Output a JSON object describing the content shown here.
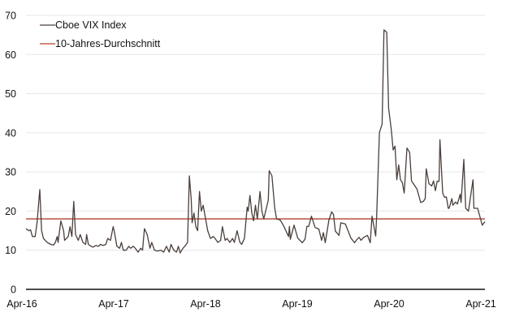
{
  "chart_data": {
    "type": "line",
    "title": "",
    "xlabel": "",
    "ylabel": "",
    "ylim": [
      0,
      70
    ],
    "yticks": [
      0,
      10,
      20,
      30,
      40,
      50,
      60,
      70
    ],
    "xlim_years_since_start": [
      0,
      5
    ],
    "xtick_labels": [
      "Apr-16",
      "Apr-17",
      "Apr-18",
      "Apr-19",
      "Apr-20",
      "Apr-21"
    ],
    "grid": true,
    "legend_position": "top-left",
    "series": [
      {
        "name": "Cboe VIX Index",
        "color": "#4a3f3b",
        "x_years_since_apr16": [
          0,
          0.03,
          0.05,
          0.07,
          0.1,
          0.12,
          0.15,
          0.17,
          0.19,
          0.23,
          0.27,
          0.3,
          0.32,
          0.34,
          0.35,
          0.38,
          0.41,
          0.42,
          0.46,
          0.48,
          0.5,
          0.52,
          0.54,
          0.57,
          0.59,
          0.62,
          0.65,
          0.66,
          0.68,
          0.71,
          0.73,
          0.76,
          0.79,
          0.81,
          0.84,
          0.87,
          0.89,
          0.92,
          0.95,
          0.96,
          0.99,
          1.02,
          1.04,
          1.06,
          1.09,
          1.12,
          1.14,
          1.17,
          1.19,
          1.22,
          1.25,
          1.27,
          1.29,
          1.32,
          1.35,
          1.37,
          1.4,
          1.43,
          1.47,
          1.5,
          1.53,
          1.56,
          1.58,
          1.61,
          1.64,
          1.66,
          1.68,
          1.71,
          1.73,
          1.76,
          1.78,
          1.8,
          1.81,
          1.83,
          1.85,
          1.87,
          1.89,
          1.91,
          1.93,
          1.96,
          1.98,
          2.01,
          2.04,
          2.06,
          2.09,
          2.12,
          2.14,
          2.17,
          2.19,
          2.22,
          2.25,
          2.27,
          2.3,
          2.33,
          2.35,
          2.38,
          2.41,
          2.42,
          2.44,
          2.46,
          2.48,
          2.5,
          2.52,
          2.55,
          2.57,
          2.59,
          2.64,
          2.65,
          2.68,
          2.71,
          2.73,
          2.77,
          2.81,
          2.86,
          2.87,
          2.88,
          2.92,
          2.96,
          3.01,
          3.04,
          3.06,
          3.08,
          3.11,
          3.15,
          3.19,
          3.22,
          3.24,
          3.26,
          3.3,
          3.33,
          3.35,
          3.37,
          3.41,
          3.43,
          3.48,
          3.54,
          3.58,
          3.6,
          3.63,
          3.65,
          3.68,
          3.72,
          3.75,
          3.77,
          3.79,
          3.81,
          3.82,
          3.85,
          3.88,
          3.9,
          3.93,
          3.95,
          3.98,
          4.0,
          4.02,
          4.04,
          4.06,
          4.08,
          4.1,
          4.12,
          4.15,
          4.18,
          4.2,
          4.22,
          4.26,
          4.3,
          4.33,
          4.35,
          4.36,
          4.39,
          4.42,
          4.44,
          4.46,
          4.48,
          4.5,
          4.51,
          4.54,
          4.56,
          4.58,
          4.6,
          4.61,
          4.64,
          4.65,
          4.68,
          4.7,
          4.73,
          4.74,
          4.77,
          4.79,
          4.82,
          4.87,
          4.88,
          4.92,
          4.96,
          4.97,
          5.0
        ],
        "values": [
          15.5,
          15,
          15.2,
          13.5,
          13.5,
          17,
          25.5,
          15,
          13,
          12,
          11.5,
          11.3,
          12,
          13.5,
          12,
          17.5,
          15,
          12.5,
          13.5,
          16,
          13.5,
          22.5,
          14,
          12.5,
          14,
          12,
          11.5,
          14,
          11.5,
          11,
          10.8,
          11.2,
          11,
          11.5,
          11.2,
          11.5,
          13,
          12.5,
          16,
          15,
          11,
          10.5,
          12,
          10,
          10,
          11,
          10.5,
          11,
          10.5,
          9.5,
          10.5,
          10,
          15.5,
          14,
          10.5,
          12,
          10,
          9.8,
          10,
          9.5,
          11,
          9.5,
          11.5,
          10,
          9.5,
          11,
          9.3,
          10.5,
          11,
          12,
          29,
          23,
          17,
          19.5,
          16,
          15,
          25,
          20,
          21.5,
          17.5,
          15,
          13,
          13.5,
          13,
          12,
          12.5,
          16,
          12.5,
          13,
          12,
          13,
          12,
          15,
          12,
          11.5,
          13,
          21,
          20,
          24,
          19.5,
          17.5,
          21.5,
          18,
          25,
          20,
          18,
          22.8,
          30.3,
          29,
          20.7,
          18,
          17.7,
          16.1,
          13.5,
          16.1,
          12.8,
          16.4,
          13.1,
          11.9,
          12.8,
          16.1,
          16.1,
          18.7,
          15.8,
          15.4,
          12.5,
          14.5,
          11.9,
          17.7,
          19.8,
          19.1,
          14.9,
          13.8,
          17,
          16.7,
          13.1,
          11.9,
          12.6,
          13.3,
          12.5,
          13.3,
          13.8,
          11.9,
          18.7,
          16.1,
          13.6,
          18.7,
          40.1,
          42.2,
          66.3,
          65.7,
          46.3,
          40.8,
          35.6,
          36.6,
          28,
          31.8,
          28,
          27.3,
          24.6,
          36.1,
          35,
          27.7,
          27,
          25.6,
          22.2,
          22.5,
          23.2,
          30.8,
          27,
          26.4,
          27.7,
          25.2,
          27.6,
          27.6,
          38.2,
          24.6,
          23.5,
          23.6,
          20.7,
          20.7,
          23.2,
          21.5,
          22.3,
          21.8,
          24.3,
          22.2,
          33.2,
          20.7,
          20,
          28,
          20.7,
          20.7,
          17.3,
          16.4,
          17.3,
          17.5
        ]
      },
      {
        "name": "10-Jahres-Durchschnitt",
        "color": "#b5412c",
        "value": 18
      }
    ]
  }
}
